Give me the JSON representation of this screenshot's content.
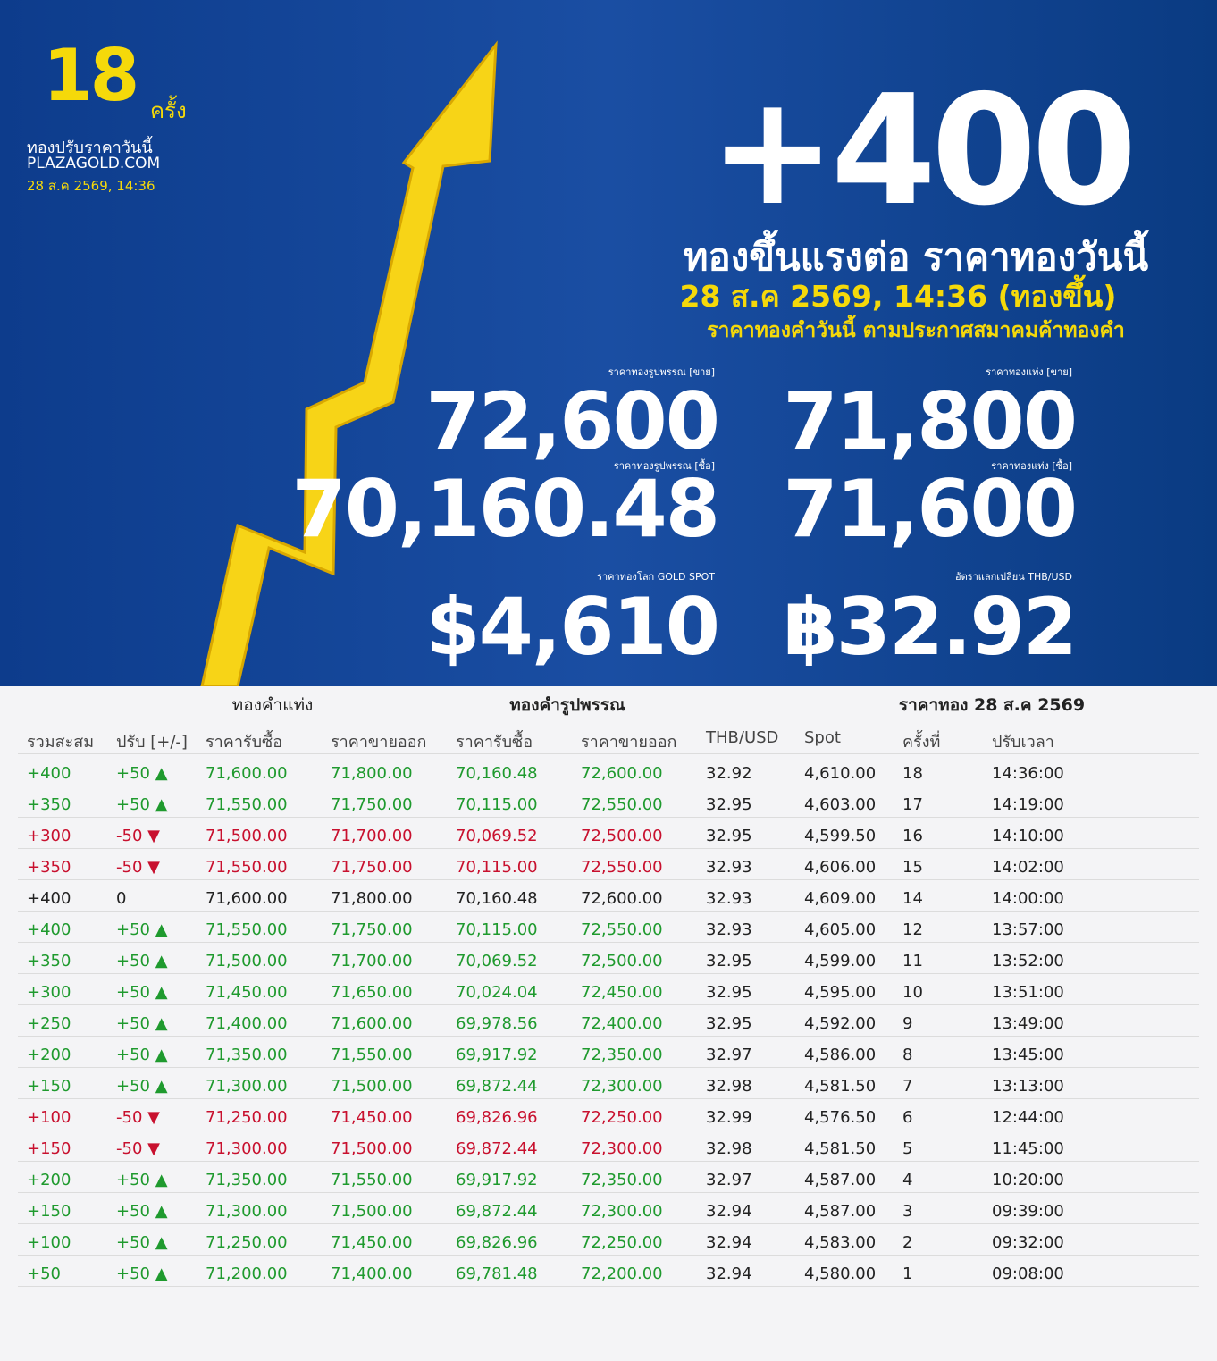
{
  "header": {
    "count": "18",
    "count_unit": "ครั้ง",
    "caption": "ทองปรับราคาวันนี้",
    "site": "PLAZAGOLD.COM",
    "datetime": "28 ส.ค 2569, 14:36"
  },
  "headline": {
    "change": "+400",
    "title": "ทองขึ้นแรงต่อ ราคาทองวันนี้",
    "subtitle": "28 ส.ค 2569, 14:36 (ทองขึ้น)",
    "note": "ราคาทองคำวันนี้ ตามประกาศสมาคมค้าทองคำ"
  },
  "prices": [
    {
      "label": "ราคาทองรูปพรรณ [ขาย]",
      "value": "72,600"
    },
    {
      "label": "ราคาทองแท่ง [ขาย]",
      "value": "71,800"
    },
    {
      "label": "ราคาทองรูปพรรณ [ซื้อ]",
      "value": "70,160.48"
    },
    {
      "label": "ราคาทองแท่ง [ซื้อ]",
      "value": "71,600"
    },
    {
      "label": "ราคาทองโลก GOLD SPOT",
      "value": "$4,610"
    },
    {
      "label": "อัตราแลกเปลี่ยน THB/USD",
      "value": "฿32.92"
    }
  ],
  "table": {
    "groups": [
      "ทองคำแท่ง",
      "ทองคำรูปพรรณ",
      "ราคาทอง 28 ส.ค 2569"
    ],
    "columns": [
      "รวมสะสม",
      "ปรับ [+/-]",
      "ราคารับซื้อ",
      "ราคาขายออก",
      "ราคารับซื้อ",
      "ราคาขายออก",
      "THB/USD",
      "Spot",
      "ครั้งที่",
      "ปรับเวลา"
    ],
    "rows": [
      [
        "+400",
        "+50 ▲",
        "71,600.00",
        "71,800.00",
        "70,160.48",
        "72,600.00",
        "32.92",
        "4,610.00",
        "18",
        "14:36:00"
      ],
      [
        "+350",
        "+50 ▲",
        "71,550.00",
        "71,750.00",
        "70,115.00",
        "72,550.00",
        "32.95",
        "4,603.00",
        "17",
        "14:19:00"
      ],
      [
        "+300",
        "-50 ▼",
        "71,500.00",
        "71,700.00",
        "70,069.52",
        "72,500.00",
        "32.95",
        "4,599.50",
        "16",
        "14:10:00"
      ],
      [
        "+350",
        "-50 ▼",
        "71,550.00",
        "71,750.00",
        "70,115.00",
        "72,550.00",
        "32.93",
        "4,606.00",
        "15",
        "14:02:00"
      ],
      [
        "+400",
        "0",
        "71,600.00",
        "71,800.00",
        "70,160.48",
        "72,600.00",
        "32.93",
        "4,609.00",
        "14",
        "14:00:00"
      ],
      [
        "+400",
        "+50 ▲",
        "71,550.00",
        "71,750.00",
        "70,115.00",
        "72,550.00",
        "32.93",
        "4,605.00",
        "12",
        "13:57:00"
      ],
      [
        "+350",
        "+50 ▲",
        "71,500.00",
        "71,700.00",
        "70,069.52",
        "72,500.00",
        "32.95",
        "4,599.00",
        "11",
        "13:52:00"
      ],
      [
        "+300",
        "+50 ▲",
        "71,450.00",
        "71,650.00",
        "70,024.04",
        "72,450.00",
        "32.95",
        "4,595.00",
        "10",
        "13:51:00"
      ],
      [
        "+250",
        "+50 ▲",
        "71,400.00",
        "71,600.00",
        "69,978.56",
        "72,400.00",
        "32.95",
        "4,592.00",
        "9",
        "13:49:00"
      ],
      [
        "+200",
        "+50 ▲",
        "71,350.00",
        "71,550.00",
        "69,917.92",
        "72,350.00",
        "32.97",
        "4,586.00",
        "8",
        "13:45:00"
      ],
      [
        "+150",
        "+50 ▲",
        "71,300.00",
        "71,500.00",
        "69,872.44",
        "72,300.00",
        "32.98",
        "4,581.50",
        "7",
        "13:13:00"
      ],
      [
        "+100",
        "-50 ▼",
        "71,250.00",
        "71,450.00",
        "69,826.96",
        "72,250.00",
        "32.99",
        "4,576.50",
        "6",
        "12:44:00"
      ],
      [
        "+150",
        "-50 ▼",
        "71,300.00",
        "71,500.00",
        "69,872.44",
        "72,300.00",
        "32.98",
        "4,581.50",
        "5",
        "11:45:00"
      ],
      [
        "+200",
        "+50 ▲",
        "71,350.00",
        "71,550.00",
        "69,917.92",
        "72,350.00",
        "32.97",
        "4,587.00",
        "4",
        "10:20:00"
      ],
      [
        "+150",
        "+50 ▲",
        "71,300.00",
        "71,500.00",
        "69,872.44",
        "72,300.00",
        "32.94",
        "4,587.00",
        "3",
        "09:39:00"
      ],
      [
        "+100",
        "+50 ▲",
        "71,250.00",
        "71,450.00",
        "69,826.96",
        "72,250.00",
        "32.94",
        "4,583.00",
        "2",
        "09:32:00"
      ],
      [
        "+50",
        "+50 ▲",
        "71,200.00",
        "71,400.00",
        "69,781.48",
        "72,200.00",
        "32.94",
        "4,580.00",
        "1",
        "09:08:00"
      ]
    ]
  }
}
